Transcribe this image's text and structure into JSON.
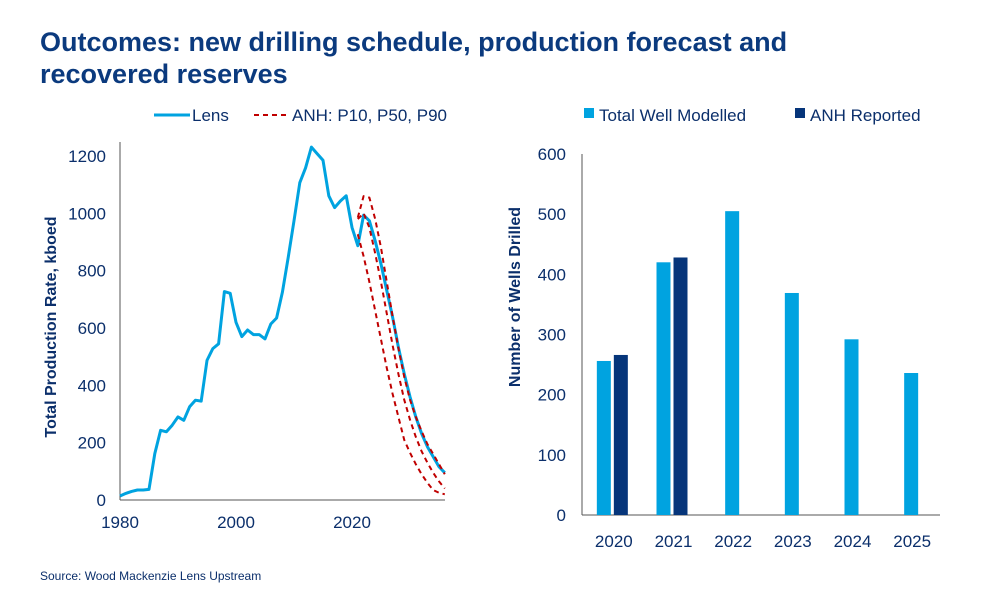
{
  "title": "Outcomes: new drilling schedule, production forecast and recovered reserves",
  "source": "Source: Wood Mackenzie Lens Upstream",
  "colors": {
    "lens": "#00a3e0",
    "anh": "#c00000",
    "modelled": "#00a3e0",
    "reported": "#06357a",
    "text": "#0b2f6b"
  },
  "chart_data": [
    {
      "type": "line",
      "ylabel": "Total Production Rate, kboed",
      "xlabel": "",
      "xlim": [
        1980,
        2036
      ],
      "ylim": [
        0,
        1250
      ],
      "xticks": [
        "1980",
        "2000",
        "2020"
      ],
      "yticks": [
        "0",
        "200",
        "400",
        "600",
        "800",
        "1000",
        "1200"
      ],
      "grid": false,
      "legend": "top",
      "series": [
        {
          "name": "Lens",
          "style": "solid",
          "x": [
            1980,
            1981,
            1982,
            1983,
            1984,
            1985,
            1986,
            1987,
            1988,
            1989,
            1990,
            1991,
            1992,
            1993,
            1994,
            1995,
            1996,
            1997,
            1998,
            1999,
            2000,
            2001,
            2002,
            2003,
            2004,
            2005,
            2006,
            2007,
            2008,
            2009,
            2010,
            2011,
            2012,
            2013,
            2014,
            2015,
            2016,
            2017,
            2018,
            2019,
            2020,
            2021,
            2022,
            2023,
            2024,
            2025,
            2026,
            2027,
            2028,
            2029,
            2030,
            2031,
            2032,
            2033,
            2034,
            2035,
            2036
          ],
          "y": [
            14,
            23,
            30,
            35,
            35,
            37,
            162,
            243,
            238,
            261,
            290,
            278,
            325,
            348,
            345,
            487,
            528,
            545,
            727,
            721,
            620,
            570,
            593,
            577,
            577,
            562,
            614,
            635,
            725,
            846,
            974,
            1107,
            1159,
            1231,
            1208,
            1185,
            1061,
            1020,
            1043,
            1061,
            951,
            887,
            994,
            974,
            904,
            823,
            730,
            638,
            533,
            441,
            360,
            290,
            232,
            186,
            151,
            116,
            95
          ]
        },
        {
          "name": "ANH: P10, P50, P90",
          "style": "dashed",
          "label": "P10",
          "x": [
            2021,
            2022,
            2023,
            2024,
            2025,
            2026,
            2027,
            2028,
            2029,
            2030,
            2031,
            2032,
            2033,
            2034,
            2035,
            2036
          ],
          "y": [
            985,
            1060,
            1055,
            980,
            880,
            760,
            640,
            530,
            430,
            350,
            290,
            240,
            195,
            160,
            125,
            90
          ]
        },
        {
          "name": "",
          "style": "dashed",
          "label": "P50",
          "x": [
            2021,
            2022,
            2023,
            2024,
            2025,
            2026,
            2027,
            2028,
            2029,
            2030,
            2031,
            2032,
            2033,
            2034,
            2035,
            2036
          ],
          "y": [
            980,
            1000,
            950,
            860,
            760,
            650,
            540,
            440,
            350,
            280,
            220,
            170,
            130,
            95,
            65,
            40
          ]
        },
        {
          "name": "",
          "style": "dashed",
          "label": "P90",
          "x": [
            2021,
            2022,
            2023,
            2024,
            2025,
            2026,
            2027,
            2028,
            2029,
            2030,
            2031,
            2032,
            2033,
            2034,
            2035,
            2036
          ],
          "y": [
            927,
            850,
            760,
            660,
            560,
            460,
            370,
            290,
            210,
            165,
            125,
            90,
            60,
            35,
            25,
            20
          ]
        }
      ]
    },
    {
      "type": "bar",
      "ylabel": "Number of Wells Drilled",
      "xlabel": "",
      "ylim": [
        0,
        600
      ],
      "yticks": [
        "0",
        "100",
        "200",
        "300",
        "400",
        "500",
        "600"
      ],
      "categories": [
        "2020",
        "2021",
        "2022",
        "2023",
        "2024",
        "2025"
      ],
      "grid": false,
      "legend": "top",
      "series": [
        {
          "name": "Total Well Modelled",
          "values": [
            256,
            420,
            505,
            369,
            292,
            236
          ]
        },
        {
          "name": "ANH Reported",
          "values": [
            266,
            428,
            null,
            null,
            null,
            null
          ]
        }
      ]
    }
  ]
}
